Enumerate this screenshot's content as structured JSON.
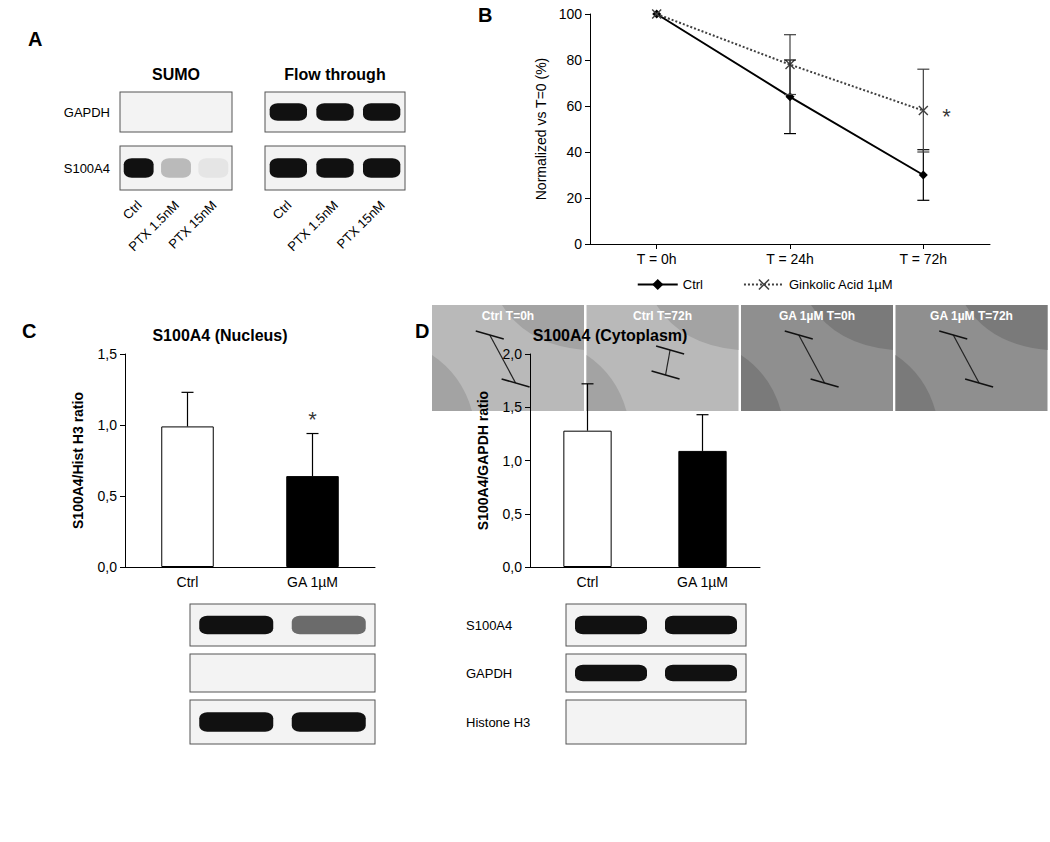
{
  "chart_data": [
    {
      "type": "line",
      "y_label": "Normalized vs T=0 (%)",
      "categories": [
        "T = 0h",
        "T = 24h",
        "T = 72h"
      ],
      "series": [
        {
          "name": "Ctrl",
          "color": "#000000",
          "marker": "diamond",
          "line_style": "solid",
          "values": [
            100,
            64,
            30
          ],
          "errors": [
            0,
            16,
            11
          ]
        },
        {
          "name": "Ginkolic Acid 1µM",
          "color": "#404040",
          "marker": "x",
          "line_style": "dotted",
          "values": [
            100,
            78,
            58
          ],
          "errors": [
            0,
            13,
            18
          ]
        }
      ],
      "ylim": [
        0,
        100
      ],
      "yticks": [
        0,
        20,
        40,
        60,
        80,
        100
      ],
      "grid": false,
      "legend": "bottom",
      "annotations": [
        {
          "text": "*",
          "x": "T = 72h",
          "y": 58
        }
      ]
    },
    {
      "type": "bar",
      "title": "S100A4 (Nucleus)",
      "y_label": "S100A4/Hist H3 ratio",
      "categories": [
        "Ctrl",
        "GA 1µM"
      ],
      "values": [
        0.99,
        0.64
      ],
      "errors": [
        0.24,
        0.3
      ],
      "colors": [
        "#ffffff",
        "#000000"
      ],
      "ylim": [
        0,
        1.5
      ],
      "yticks": [
        {
          "value": 0,
          "label": "0,0"
        },
        {
          "value": 0.5,
          "label": "0,5"
        },
        {
          "value": 1,
          "label": "1,0"
        },
        {
          "value": 1.5,
          "label": "1,5"
        }
      ],
      "grid": false,
      "annotations": [
        {
          "text": "*",
          "x": "GA 1µM",
          "y": 0.94
        }
      ]
    },
    {
      "type": "bar",
      "title": "S100A4 (Cytoplasm)",
      "y_label": "S100A4/GAPDH ratio",
      "categories": [
        "Ctrl",
        "GA 1µM"
      ],
      "values": [
        1.28,
        1.09
      ],
      "errors": [
        0.44,
        0.34
      ],
      "colors": [
        "#ffffff",
        "#000000"
      ],
      "ylim": [
        0,
        2
      ],
      "yticks": [
        {
          "value": 0,
          "label": "0,0"
        },
        {
          "value": 0.5,
          "label": "0,5"
        },
        {
          "value": 1,
          "label": "1,0"
        },
        {
          "value": 1.5,
          "label": "1,5"
        },
        {
          "value": 2,
          "label": "2,0"
        }
      ],
      "grid": false
    }
  ],
  "panel_labels": [
    "A",
    "B",
    "C",
    "D"
  ],
  "blot_a": {
    "lanes": [
      "Ctrl",
      "PTX 1.5nM",
      "PTX 15nM"
    ],
    "row_labels": [
      "GAPDH",
      "S100A4"
    ],
    "groups": [
      {
        "title": "SUMO",
        "bands": [
          [
            0,
            0,
            0
          ],
          [
            1,
            0.25,
            0.06
          ]
        ]
      },
      {
        "title": "Flow through",
        "bands": [
          [
            1,
            1,
            1
          ],
          [
            1,
            1,
            1
          ]
        ]
      }
    ]
  },
  "micrographs": [
    "Ctrl T=0h",
    "Ctrl T=72h",
    "GA 1µM T=0h",
    "GA 1µM T=72h"
  ],
  "blot_cd": {
    "row_labels": [
      "S100A4",
      "GAPDH",
      "Histone H3"
    ],
    "nucleus": [
      [
        1,
        0.6
      ],
      [
        0,
        0
      ],
      [
        1,
        1
      ]
    ],
    "cytoplasm": [
      [
        1,
        1
      ],
      [
        1,
        1
      ],
      [
        0,
        0
      ]
    ]
  }
}
